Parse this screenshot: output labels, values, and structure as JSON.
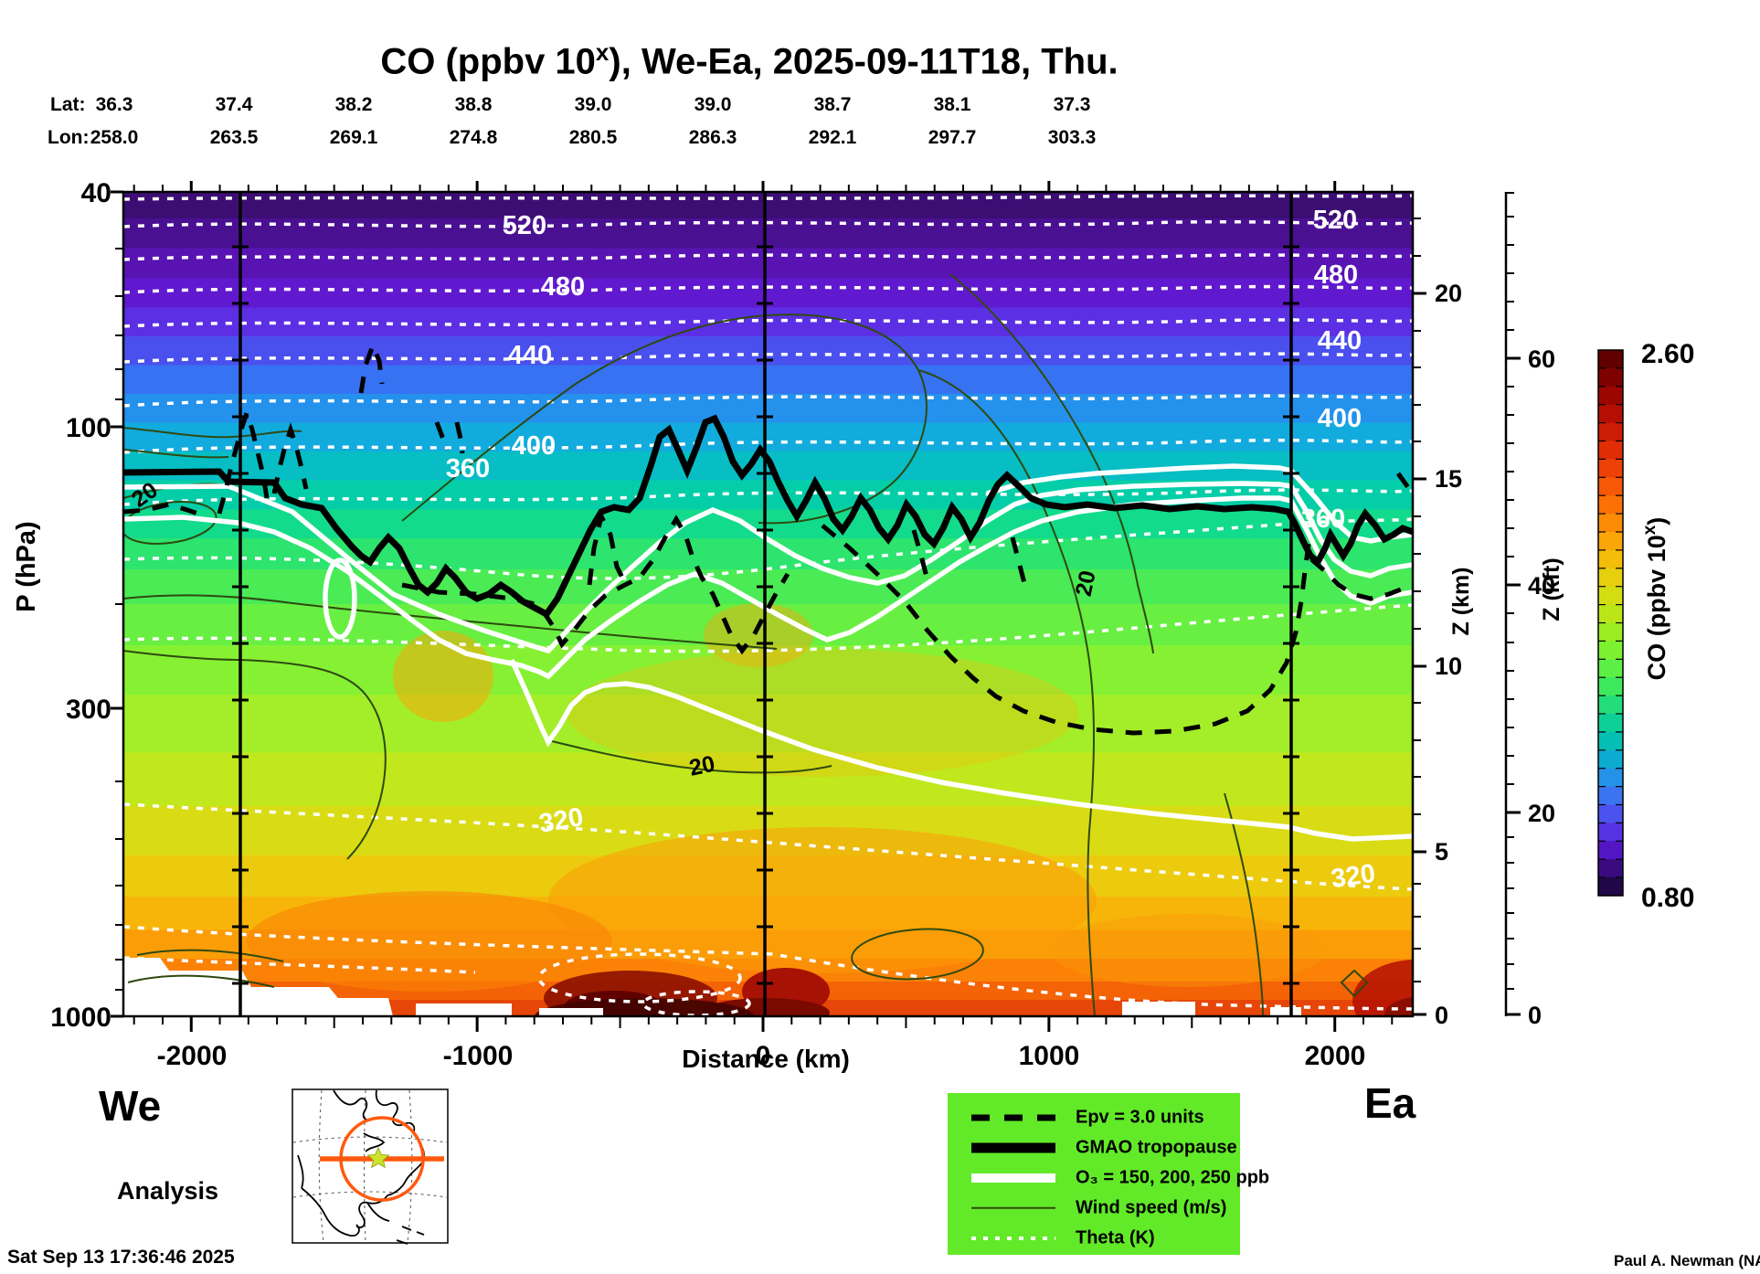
{
  "title": {
    "prefix": "CO (ppbv 10",
    "superscript": "x",
    "suffix": "), We-Ea, 2025-09-11T18, Thu."
  },
  "header": {
    "lat_label": "Lat:",
    "lon_label": "Lon:",
    "lat_values": [
      "36.3",
      "37.4",
      "38.2",
      "38.8",
      "39.0",
      "39.0",
      "38.7",
      "38.1",
      "37.3"
    ],
    "lon_values": [
      "258.0",
      "263.5",
      "269.1",
      "274.8",
      "280.5",
      "286.3",
      "292.1",
      "297.7",
      "303.3"
    ]
  },
  "axes": {
    "pressure": {
      "label": "P (hPa)",
      "ticks": [
        "40",
        "100",
        "300",
        "1000"
      ]
    },
    "distance": {
      "label": "Distance (km)",
      "ticks": [
        "-2000",
        "-1000",
        "0",
        "1000",
        "2000"
      ]
    },
    "z_km": {
      "label": "Z (km)",
      "ticks": [
        "0",
        "5",
        "10",
        "15",
        "20"
      ]
    },
    "z_kft": {
      "label": "Z (kft)",
      "ticks": [
        "0",
        "20",
        "40",
        "60"
      ]
    }
  },
  "colorbar": {
    "max": "2.60",
    "min": "0.80",
    "label_prefix": "CO (ppbv 10",
    "superscript": "x",
    "label_suffix": ")",
    "colors_top_to_bottom": [
      "#600000",
      "#7e0100",
      "#9b0600",
      "#b50f03",
      "#cc1c05",
      "#df2d06",
      "#ee4106",
      "#f65805",
      "#fb7105",
      "#fc8b06",
      "#faa508",
      "#f3bd0a",
      "#e6cf0d",
      "#d3dd12",
      "#bae618",
      "#9cec22",
      "#7cf130",
      "#5cef45",
      "#3ee95e",
      "#23dd7b",
      "#0ecf98",
      "#05bfb4",
      "#0eabd1",
      "#2392e7",
      "#3b74f1",
      "#4b53ee",
      "#5532e2",
      "#5316c4",
      "#390b7e",
      "#200747"
    ]
  },
  "contour_labels": {
    "theta": [
      "520",
      "480",
      "440",
      "400",
      "360",
      "320"
    ],
    "wind": "20"
  },
  "legend": {
    "bg_color": "#62ea29",
    "labels": [
      "Epv = 3.0 units",
      "GMAO tropopause",
      "O₃ = 150, 200, 250 ppb",
      "Wind speed (m/s)",
      "Theta (K)"
    ],
    "styles": [
      "dashed-black",
      "thick-black",
      "thick-white",
      "thin-dark",
      "dotted-white"
    ]
  },
  "footer": {
    "left_endpoint": "We",
    "right_endpoint": "Ea",
    "analysis": "Analysis",
    "timestamp": "Sat Sep 13 17:36:46 2025",
    "credit": "Paul A. Newman (NASA"
  },
  "map_inset": {
    "circle_color": "#ff5a0f",
    "star_color": "#cde22e"
  },
  "chart_data": {
    "type": "heatmap",
    "title": "CO (ppbv 10^x), We-Ea, 2025-09-11T18, Thu.",
    "xlabel": "Distance (km)",
    "ylabel_left": "P (hPa)",
    "ylabel_right": [
      "Z (km)",
      "Z (kft)"
    ],
    "x_range_km": [
      -2250,
      2250
    ],
    "x_ticks_km": [
      -2000,
      -1000,
      0,
      1000,
      2000
    ],
    "pressure_ticks_hPa": [
      40,
      100,
      300,
      1000
    ],
    "pressure_scale": "log",
    "pressure_range_hPa": [
      40,
      1000
    ],
    "z_km_ticks": [
      0,
      5,
      10,
      15,
      20
    ],
    "z_kft_ticks": [
      0,
      20,
      40,
      60
    ],
    "segment_boundary_lines_km": [
      -1830,
      0,
      1830
    ],
    "colorbar": {
      "label": "CO (ppbv 10^x)",
      "min": 0.8,
      "max": 2.6,
      "n_steps": 30
    },
    "track_waypoints": {
      "lat": [
        36.3,
        37.4,
        38.2,
        38.8,
        39.0,
        39.0,
        38.7,
        38.1,
        37.3
      ],
      "lon": [
        258.0,
        263.5,
        269.1,
        274.8,
        280.5,
        286.3,
        292.1,
        297.7,
        303.3
      ]
    },
    "contours": {
      "theta_K": {
        "labeled_levels": [
          320,
          360,
          400,
          440,
          480,
          520
        ],
        "interval": 20,
        "style": "white dotted"
      },
      "o3_ppb": {
        "levels": [
          150,
          200,
          250
        ],
        "style": "thick white solid"
      },
      "epv_units": {
        "level": 3.0,
        "style": "black dashed"
      },
      "wind_speed_ms": {
        "labeled_level": 20,
        "style": "thin dark solid"
      },
      "tropopause": {
        "name": "GMAO tropopause",
        "style": "very thick black",
        "approx_pressure_hPa_range": [
          130,
          300
        ]
      }
    },
    "field_summary": {
      "description": "log10(CO) cross-section: ~0.8-1.1 (dark purple/blue) above 70 hPa, ~1.4-1.7 (cyan-green) 100-200 hPa, ~1.8-2.0 (yellow-green) mid troposphere, 2.2-2.6 (orange to dark red) near surface; darkest red surface maximum between about -700 and +300 km; white terrain/no-data cutouts at bottom left",
      "approx_log10_co_vs_pressure": {
        "40": 0.9,
        "70": 1.2,
        "100": 1.5,
        "150": 1.65,
        "200": 1.75,
        "300": 1.85,
        "500": 1.95,
        "700": 2.1,
        "850": 2.3,
        "1000": 2.45
      }
    }
  }
}
